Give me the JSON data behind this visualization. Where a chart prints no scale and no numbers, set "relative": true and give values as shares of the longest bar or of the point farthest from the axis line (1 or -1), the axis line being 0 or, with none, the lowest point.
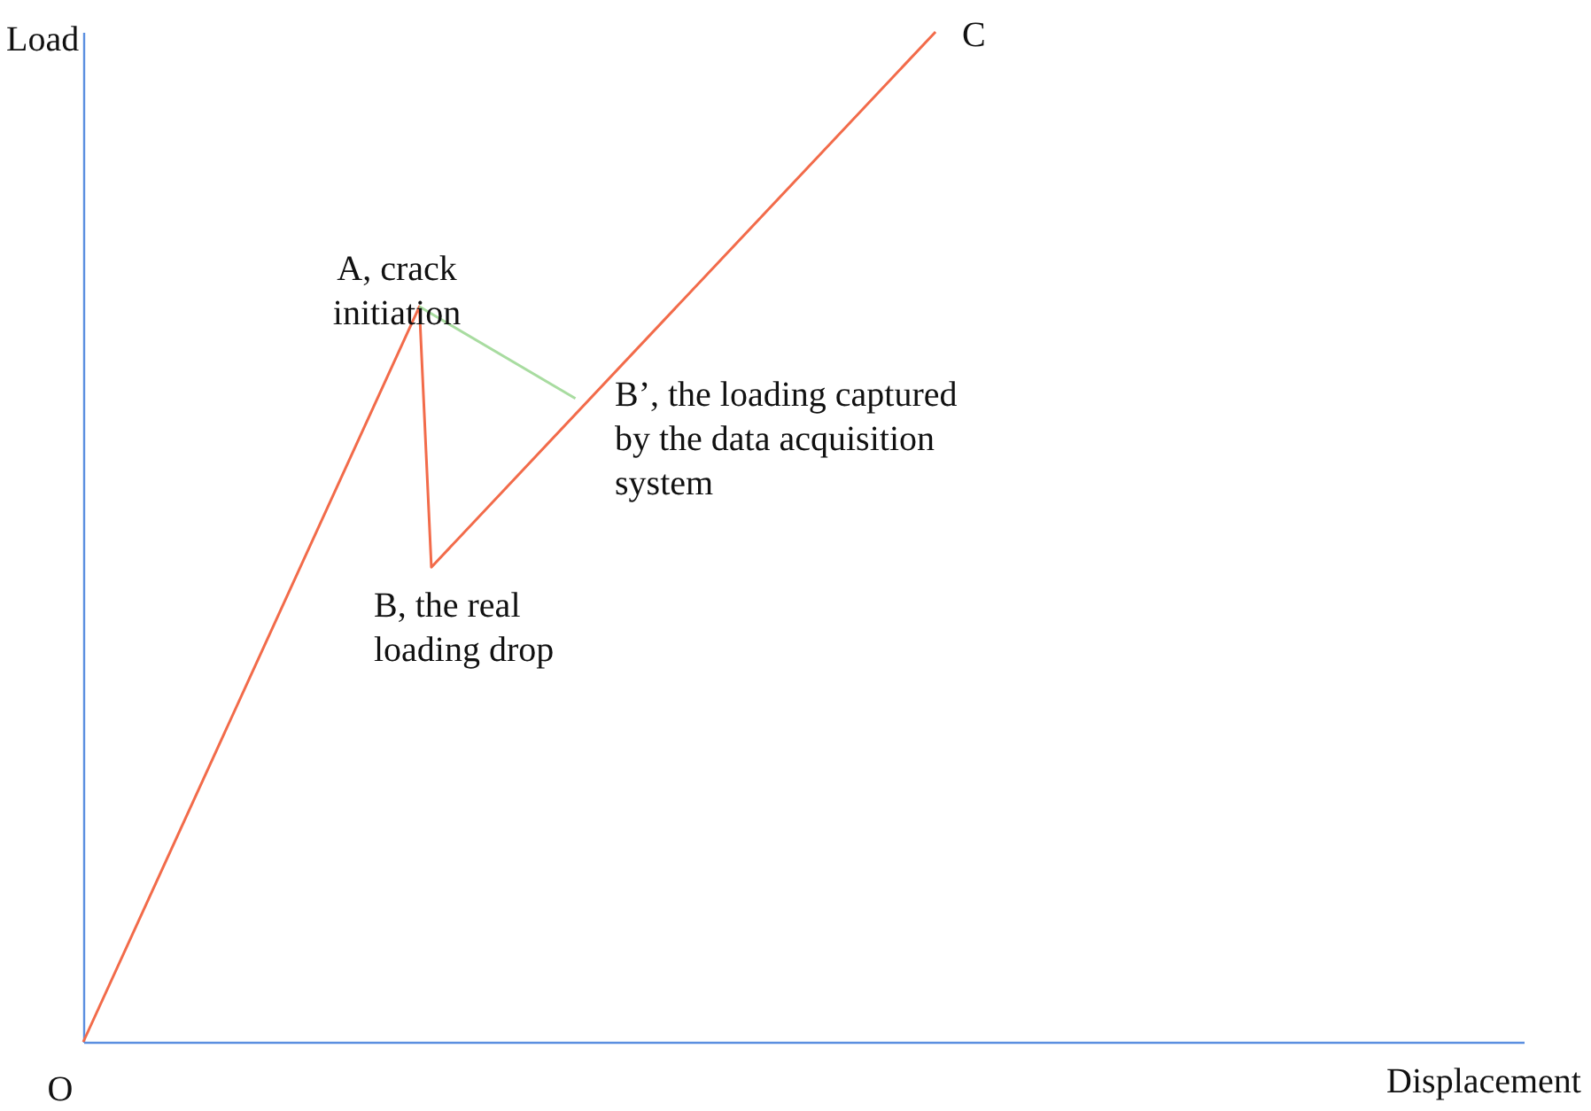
{
  "chart_data": {
    "type": "line",
    "relative": true,
    "xlabel": "Displacement",
    "ylabel": "Load",
    "marker": "none",
    "line_style": "solid",
    "categories": [
      null,
      null,
      null,
      null,
      null,
      null,
      null,
      null,
      null,
      null,
      null,
      null,
      null,
      null,
      null,
      null,
      null,
      null,
      null,
      null,
      null,
      null,
      null,
      null,
      null,
      null,
      null,
      null,
      null,
      null,
      null,
      null,
      null,
      null,
      null,
      null,
      null,
      null,
      null,
      null,
      null,
      null,
      null,
      null,
      null,
      null,
      null,
      null,
      null,
      null,
      null,
      null,
      null,
      null,
      null,
      null,
      null,
      null,
      null,
      null,
      null,
      null,
      null,
      null,
      null,
      null,
      null,
      null,
      null,
      null,
      null,
      null,
      null,
      null,
      null,
      null,
      null,
      null,
      null,
      null,
      null,
      null,
      null,
      null,
      null,
      null,
      null,
      null,
      null,
      null,
      null,
      null,
      null,
      null,
      null,
      null,
      null,
      null,
      null,
      null,
      null,
      null,
      null,
      null,
      null,
      null,
      null,
      null,
      null,
      null,
      null,
      null,
      null,
      null,
      null,
      null,
      null,
      null,
      null,
      null,
      null
    ],
    "series": [
      {
        "color": "#f26b4a",
        "values": [
          0,
          null,
          null,
          null,
          null,
          null,
          null,
          null,
          null,
          null,
          null,
          null,
          null,
          null,
          null,
          null,
          null,
          null,
          null,
          null,
          null,
          null,
          null,
          null,
          null,
          null,
          null,
          null,
          0.728,
          0.47,
          null,
          null,
          null,
          null,
          null,
          null,
          null,
          null,
          null,
          null,
          null,
          null,
          null,
          null,
          null,
          null,
          null,
          null,
          null,
          null,
          null,
          null,
          null,
          null,
          null,
          null,
          null,
          null,
          null,
          null,
          null,
          null,
          null,
          null,
          null,
          null,
          null,
          null,
          null,
          null,
          null,
          1,
          null,
          null,
          null,
          null,
          null,
          null,
          null,
          null,
          null,
          null,
          null,
          null,
          null,
          null,
          null,
          null,
          null,
          null,
          null,
          null,
          null,
          null,
          null,
          null,
          null,
          null,
          null,
          null,
          null,
          null,
          null,
          null,
          null,
          null,
          null,
          null,
          null,
          null,
          null,
          null,
          null,
          null,
          null,
          null,
          null,
          null,
          null,
          null,
          null
        ]
      },
      {
        "color": "#a8dca0",
        "values": [
          null,
          null,
          null,
          null,
          null,
          null,
          null,
          null,
          null,
          null,
          null,
          null,
          null,
          null,
          null,
          null,
          null,
          null,
          null,
          null,
          null,
          null,
          null,
          null,
          null,
          null,
          null,
          null,
          0.728,
          null,
          null,
          null,
          null,
          null,
          null,
          null,
          null,
          null,
          null,
          null,
          null,
          0.637,
          null,
          null,
          null,
          null,
          null,
          null,
          null,
          null,
          null,
          null,
          null,
          null,
          null,
          null,
          null,
          null,
          null,
          null,
          null,
          null,
          null,
          null,
          null,
          null,
          null,
          null,
          null,
          null,
          null,
          null,
          null,
          null,
          null,
          null,
          null,
          null,
          null,
          null,
          null,
          null,
          null,
          null,
          null,
          null,
          null,
          null,
          null,
          null,
          null,
          null,
          null,
          null,
          null,
          null,
          null,
          null,
          null,
          null,
          null,
          null,
          null,
          null,
          null,
          null,
          null,
          null,
          null,
          null,
          null,
          null,
          null,
          null,
          null,
          null,
          null,
          null,
          null,
          null,
          null
        ]
      }
    ],
    "annotations": [
      "O",
      "A, crack initiation",
      "B, the real loading drop",
      "B’, the loading captured by the data acquisition system",
      "C"
    ]
  }
}
